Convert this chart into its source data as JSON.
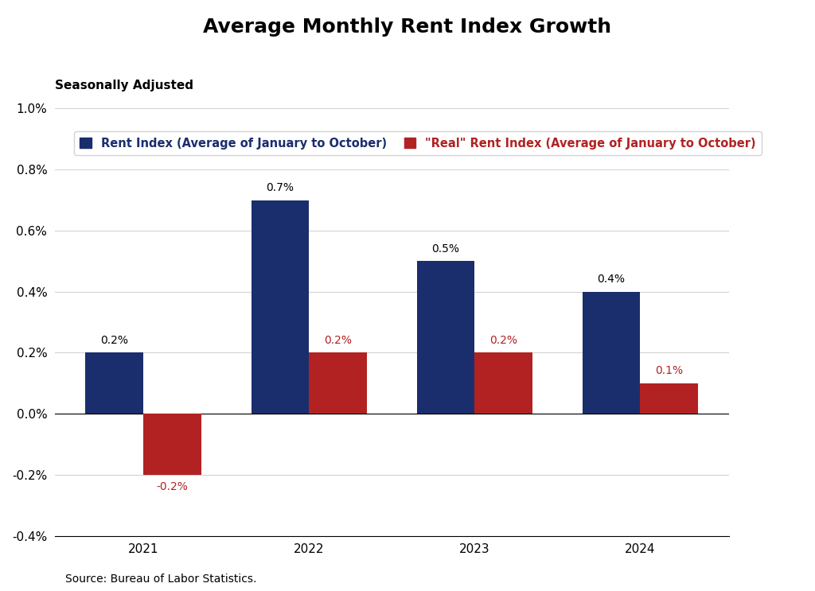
{
  "title": "Average Monthly Rent Index Growth",
  "subtitle": "Seasonally Adjusted",
  "source": "Source: Bureau of Labor Statistics.",
  "years": [
    2021,
    2022,
    2023,
    2024
  ],
  "rent_index": [
    0.002,
    0.007,
    0.005,
    0.004
  ],
  "real_rent_index": [
    -0.002,
    0.002,
    0.002,
    0.001
  ],
  "rent_labels": [
    "0.2%",
    "0.7%",
    "0.5%",
    "0.4%"
  ],
  "real_labels": [
    "-0.2%",
    "0.2%",
    "0.2%",
    "0.1%"
  ],
  "rent_color": "#1a2e6e",
  "real_color": "#b22222",
  "bar_width": 0.35,
  "ylim": [
    -0.004,
    0.01
  ],
  "yticks": [
    -0.004,
    -0.002,
    0.0,
    0.002,
    0.004,
    0.006,
    0.008,
    0.01
  ],
  "ytick_labels": [
    "-0.4%",
    "-0.2%",
    "0.0%",
    "0.2%",
    "0.4%",
    "0.6%",
    "0.8%",
    "1.0%"
  ],
  "legend_label_rent": "Rent Index (Average of January to October)",
  "legend_label_real": "\"Real\" Rent Index (Average of January to October)",
  "background_color": "#ffffff",
  "title_fontsize": 18,
  "subtitle_fontsize": 11,
  "label_fontsize": 10,
  "tick_fontsize": 11,
  "source_fontsize": 10
}
